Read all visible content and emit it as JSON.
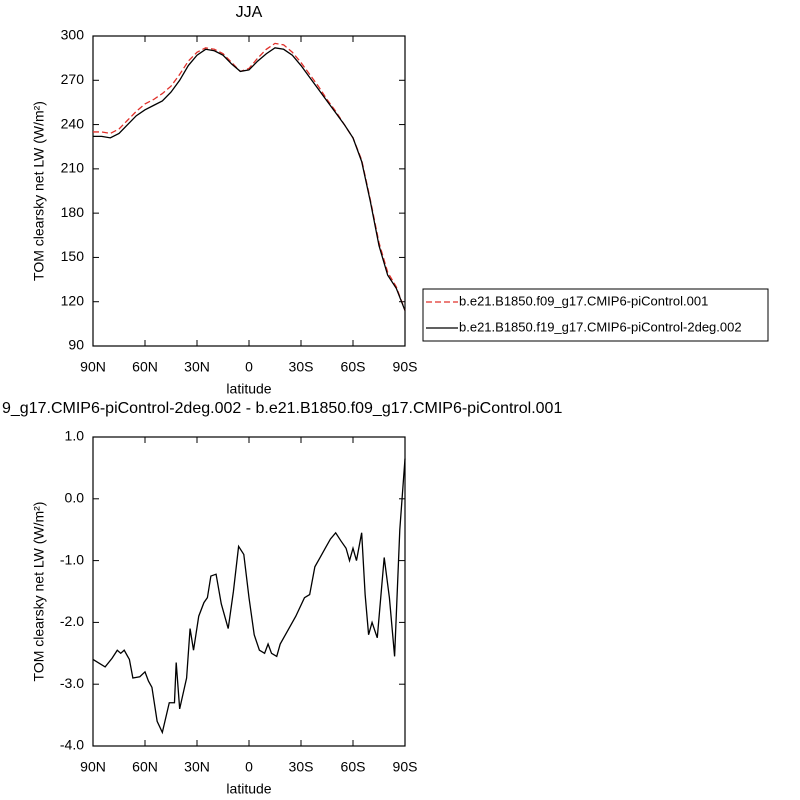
{
  "chart_data": [
    {
      "type": "line",
      "title": "JJA",
      "xlabel": "latitude",
      "ylabel": "TOM clearsky net LW (W/m²)",
      "xlim": [
        90,
        -90
      ],
      "xticks": [
        {
          "value": 90,
          "label": "90N"
        },
        {
          "value": 60,
          "label": "60N"
        },
        {
          "value": 30,
          "label": "30N"
        },
        0,
        {
          "value": -30,
          "label": "30S"
        },
        {
          "value": -60,
          "label": "60S"
        },
        {
          "value": -90,
          "label": "90S"
        }
      ],
      "ylim": [
        90,
        300
      ],
      "yticks": [
        90,
        120,
        150,
        180,
        210,
        240,
        270,
        300
      ],
      "legend": "right",
      "x": [
        90,
        85,
        80,
        75,
        70,
        65,
        60,
        55,
        50,
        45,
        40,
        35,
        30,
        25,
        20,
        15,
        10,
        5,
        0,
        -5,
        -10,
        -15,
        -20,
        -25,
        -30,
        -35,
        -40,
        -45,
        -50,
        -55,
        -60,
        -65,
        -70,
        -75,
        -80,
        -85,
        -90
      ],
      "series": [
        {
          "name": "b.e21.B1850.f09_g17.CMIP6-piControl.001",
          "color": "#e0302a",
          "line_style": "dashed",
          "values": [
            235,
            235,
            234,
            237,
            243,
            249,
            254,
            257,
            261,
            266,
            274,
            283,
            289,
            292,
            291,
            288,
            282,
            276,
            278,
            285,
            291,
            295,
            294,
            289,
            282,
            274,
            266,
            257,
            249,
            240,
            231,
            216,
            189,
            160,
            140,
            130,
            114
          ]
        },
        {
          "name": "b.e21.B1850.f19_g17.CMIP6-piControl-2deg.002",
          "color": "#000000",
          "line_style": "solid",
          "values": [
            232,
            232,
            231,
            234,
            240,
            246,
            250,
            253,
            256,
            262,
            270,
            280,
            287,
            291,
            290,
            287,
            281,
            276,
            277,
            283,
            288,
            292,
            291,
            287,
            280,
            272,
            264,
            256,
            248,
            240,
            231,
            215,
            188,
            158,
            138,
            129,
            114
          ]
        }
      ]
    },
    {
      "type": "line",
      "title": "9_g17.CMIP6-piControl-2deg.002 - b.e21.B1850.f09_g17.CMIP6-piControl.001",
      "xlabel": "latitude",
      "ylabel": "TOM clearsky net LW (W/m²)",
      "xlim": [
        90,
        -90
      ],
      "xticks": [
        {
          "value": 90,
          "label": "90N"
        },
        {
          "value": 60,
          "label": "60N"
        },
        {
          "value": 30,
          "label": "30N"
        },
        0,
        {
          "value": -30,
          "label": "30S"
        },
        {
          "value": -60,
          "label": "60S"
        },
        {
          "value": -90,
          "label": "90S"
        }
      ],
      "ylim": [
        -4,
        1
      ],
      "yticks": [
        {
          "value": -4,
          "label": "-4.0"
        },
        {
          "value": -3,
          "label": "-3.0"
        },
        {
          "value": -2,
          "label": "-2.0"
        },
        {
          "value": -1,
          "label": "-1.0"
        },
        {
          "value": 0,
          "label": "0.0"
        },
        {
          "value": 1,
          "label": "1.0"
        }
      ],
      "color": "#000000",
      "x": [
        90,
        83,
        79,
        76,
        74,
        72,
        69,
        67,
        63,
        60,
        58,
        56,
        53,
        50,
        46,
        43,
        42,
        40,
        36,
        34,
        32,
        29,
        26,
        24,
        22,
        19,
        16,
        12,
        9,
        6,
        3,
        0,
        -3,
        -6,
        -9,
        -11,
        -13,
        -16,
        -18,
        -22,
        -27,
        -32,
        -35,
        -38,
        -41,
        -44,
        -47,
        -50,
        -53,
        -56,
        -58,
        -60,
        -62,
        -65,
        -67,
        -69,
        -71,
        -74,
        -76,
        -78,
        -81,
        -84,
        -87,
        -90
      ],
      "values": [
        -2.6,
        -2.72,
        -2.58,
        -2.45,
        -2.5,
        -2.45,
        -2.6,
        -2.9,
        -2.88,
        -2.8,
        -2.95,
        -3.05,
        -3.6,
        -3.78,
        -3.3,
        -3.3,
        -2.65,
        -3.4,
        -2.9,
        -2.1,
        -2.45,
        -1.9,
        -1.68,
        -1.6,
        -1.25,
        -1.22,
        -1.7,
        -2.1,
        -1.5,
        -0.77,
        -0.9,
        -1.6,
        -2.2,
        -2.45,
        -2.5,
        -2.35,
        -2.5,
        -2.55,
        -2.35,
        -2.15,
        -1.9,
        -1.6,
        -1.55,
        -1.1,
        -0.95,
        -0.8,
        -0.65,
        -0.55,
        -0.68,
        -0.8,
        -1.0,
        -0.8,
        -1.0,
        -0.55,
        -1.55,
        -2.2,
        -2.0,
        -2.25,
        -1.6,
        -0.95,
        -1.6,
        -2.55,
        -0.5,
        0.65
      ]
    }
  ]
}
